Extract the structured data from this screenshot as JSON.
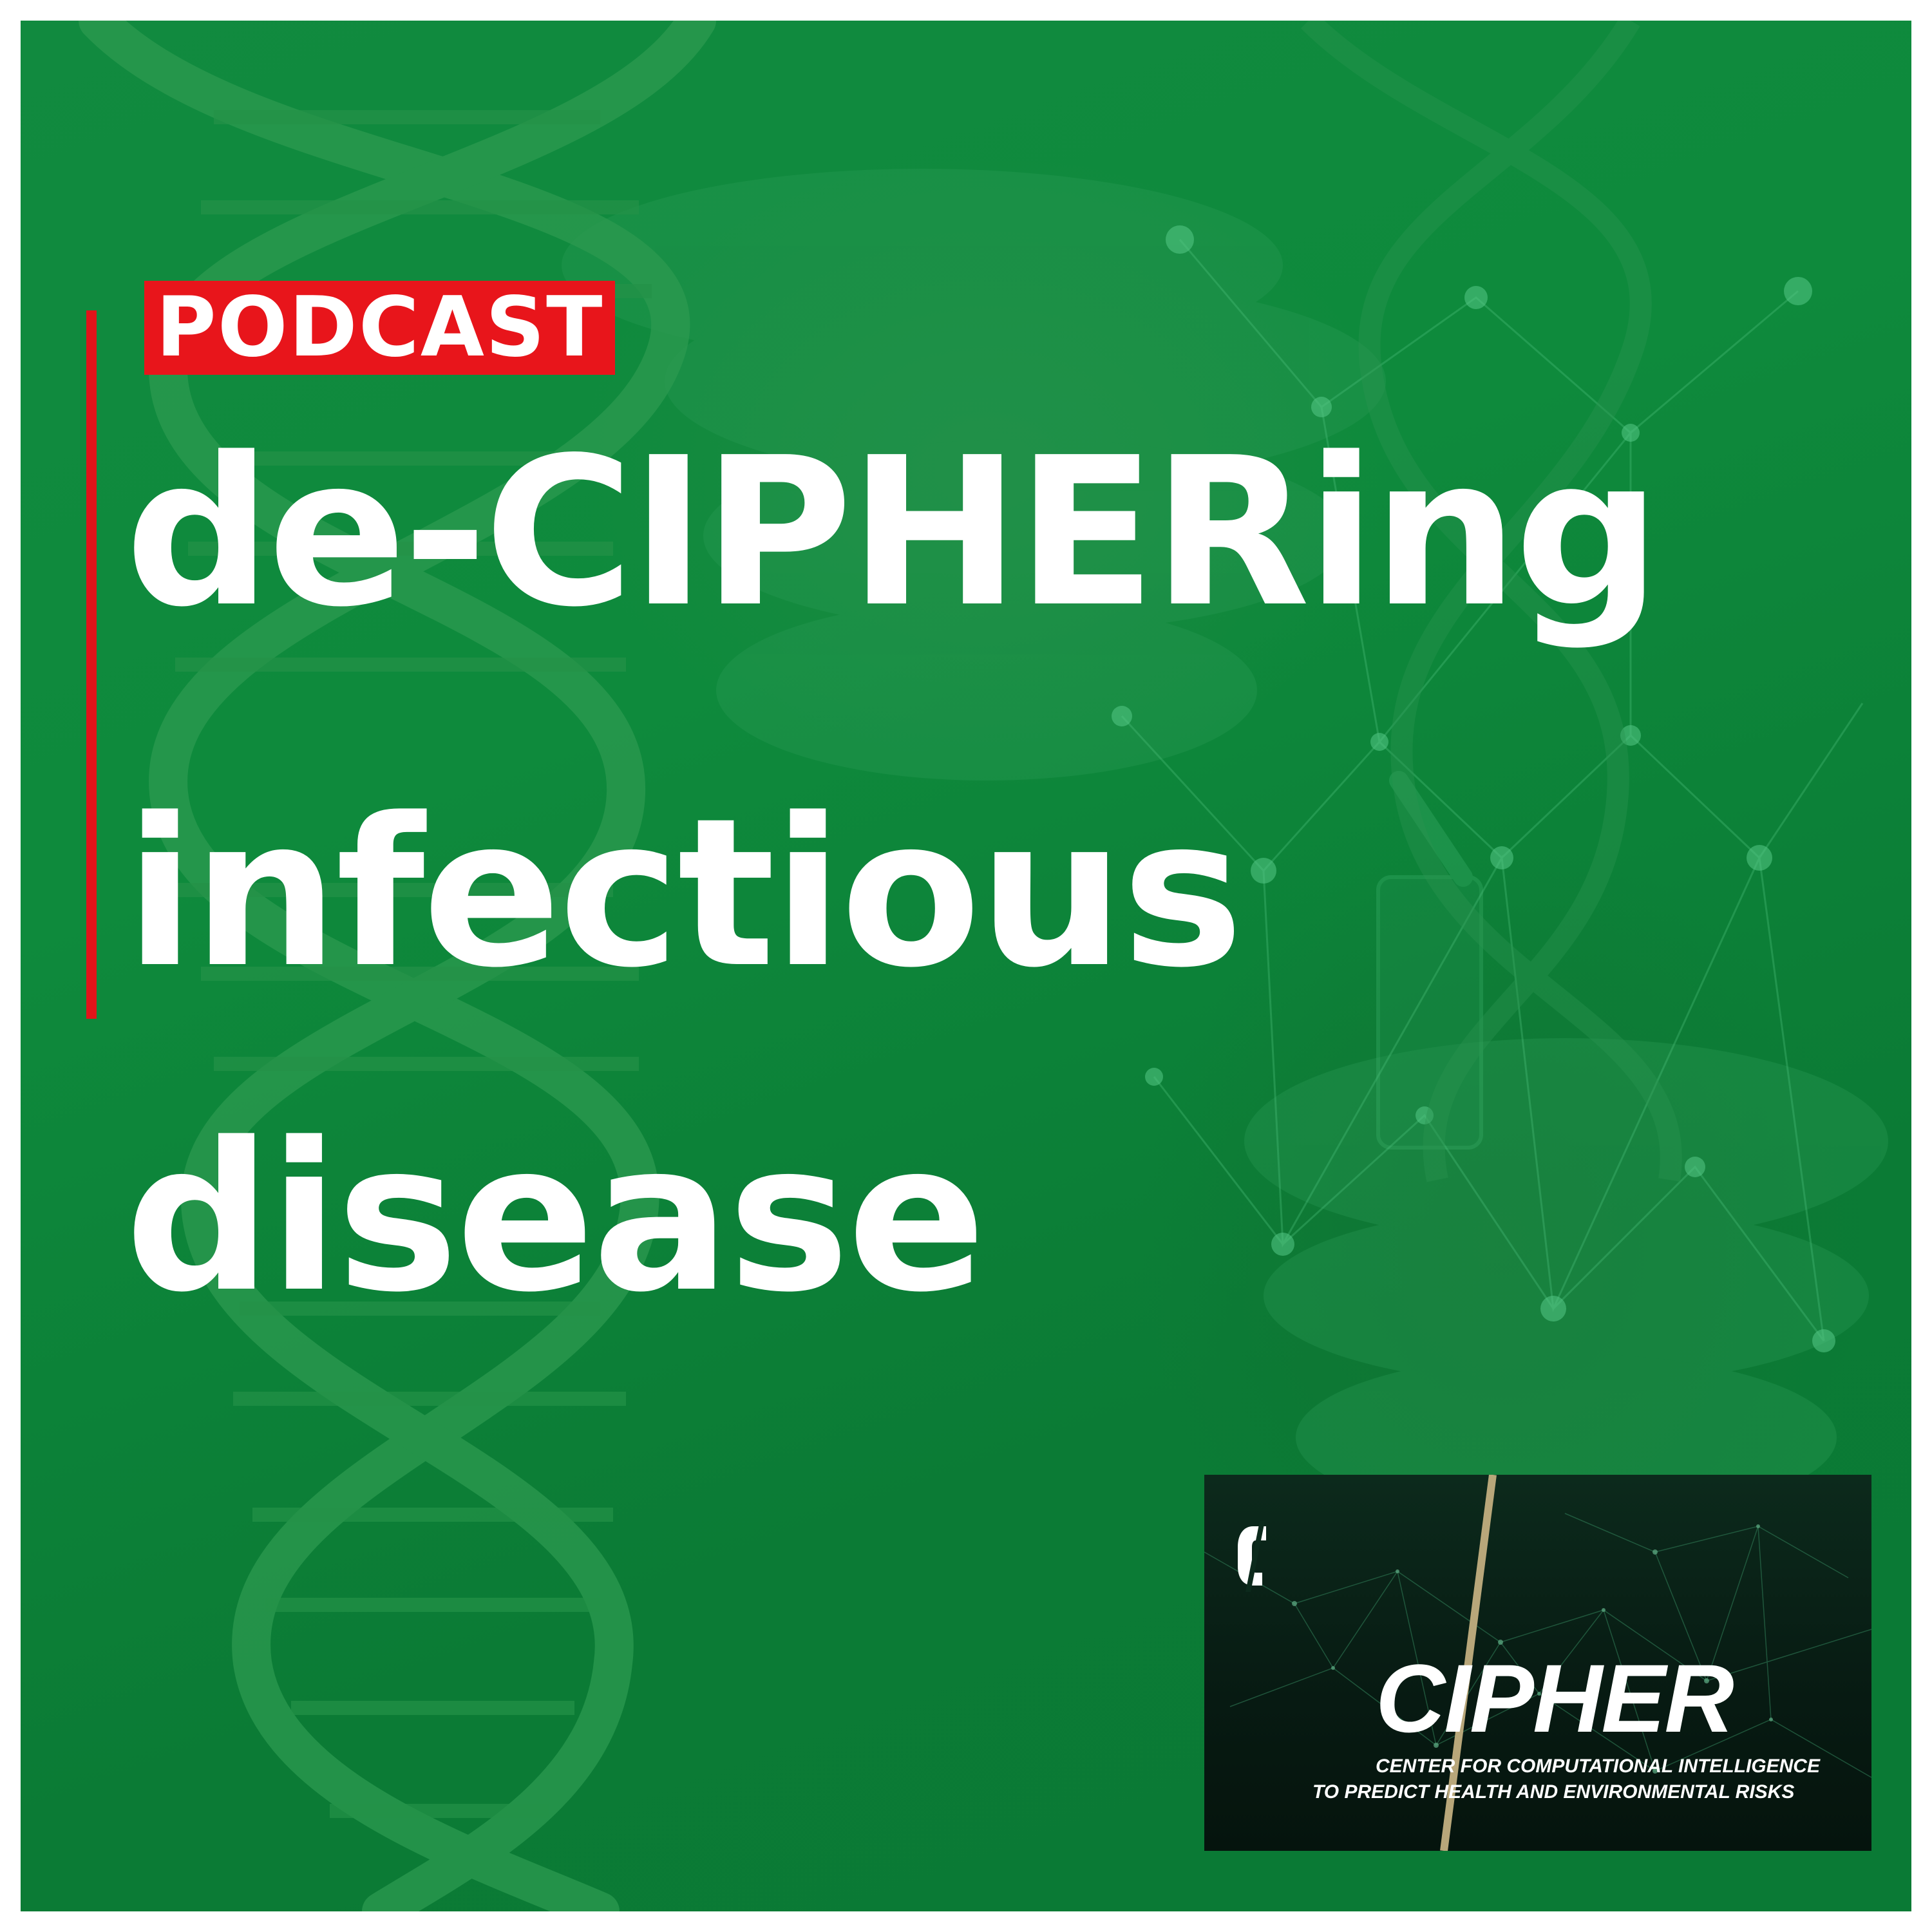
{
  "badge": {
    "label": "PODCAST"
  },
  "headline": {
    "line1": "de-CIPHERing",
    "line2": "infectious",
    "line3": "disease"
  },
  "logo": {
    "title": "CIPHER",
    "subtitle_line1": "CENTER FOR COMPUTATIONAL INTELLIGENCE",
    "subtitle_line2": "TO PREDICT HEALTH AND ENVIRONMENTAL RISKS",
    "mark_icon": "letter-c-logo-icon"
  },
  "colors": {
    "background_green": "#0e8a3c",
    "badge_red": "#e8151b",
    "accent_red": "#e0141a",
    "text_white": "#ffffff",
    "logo_dark": "#071a12",
    "logo_gold": "#b8a77a"
  }
}
